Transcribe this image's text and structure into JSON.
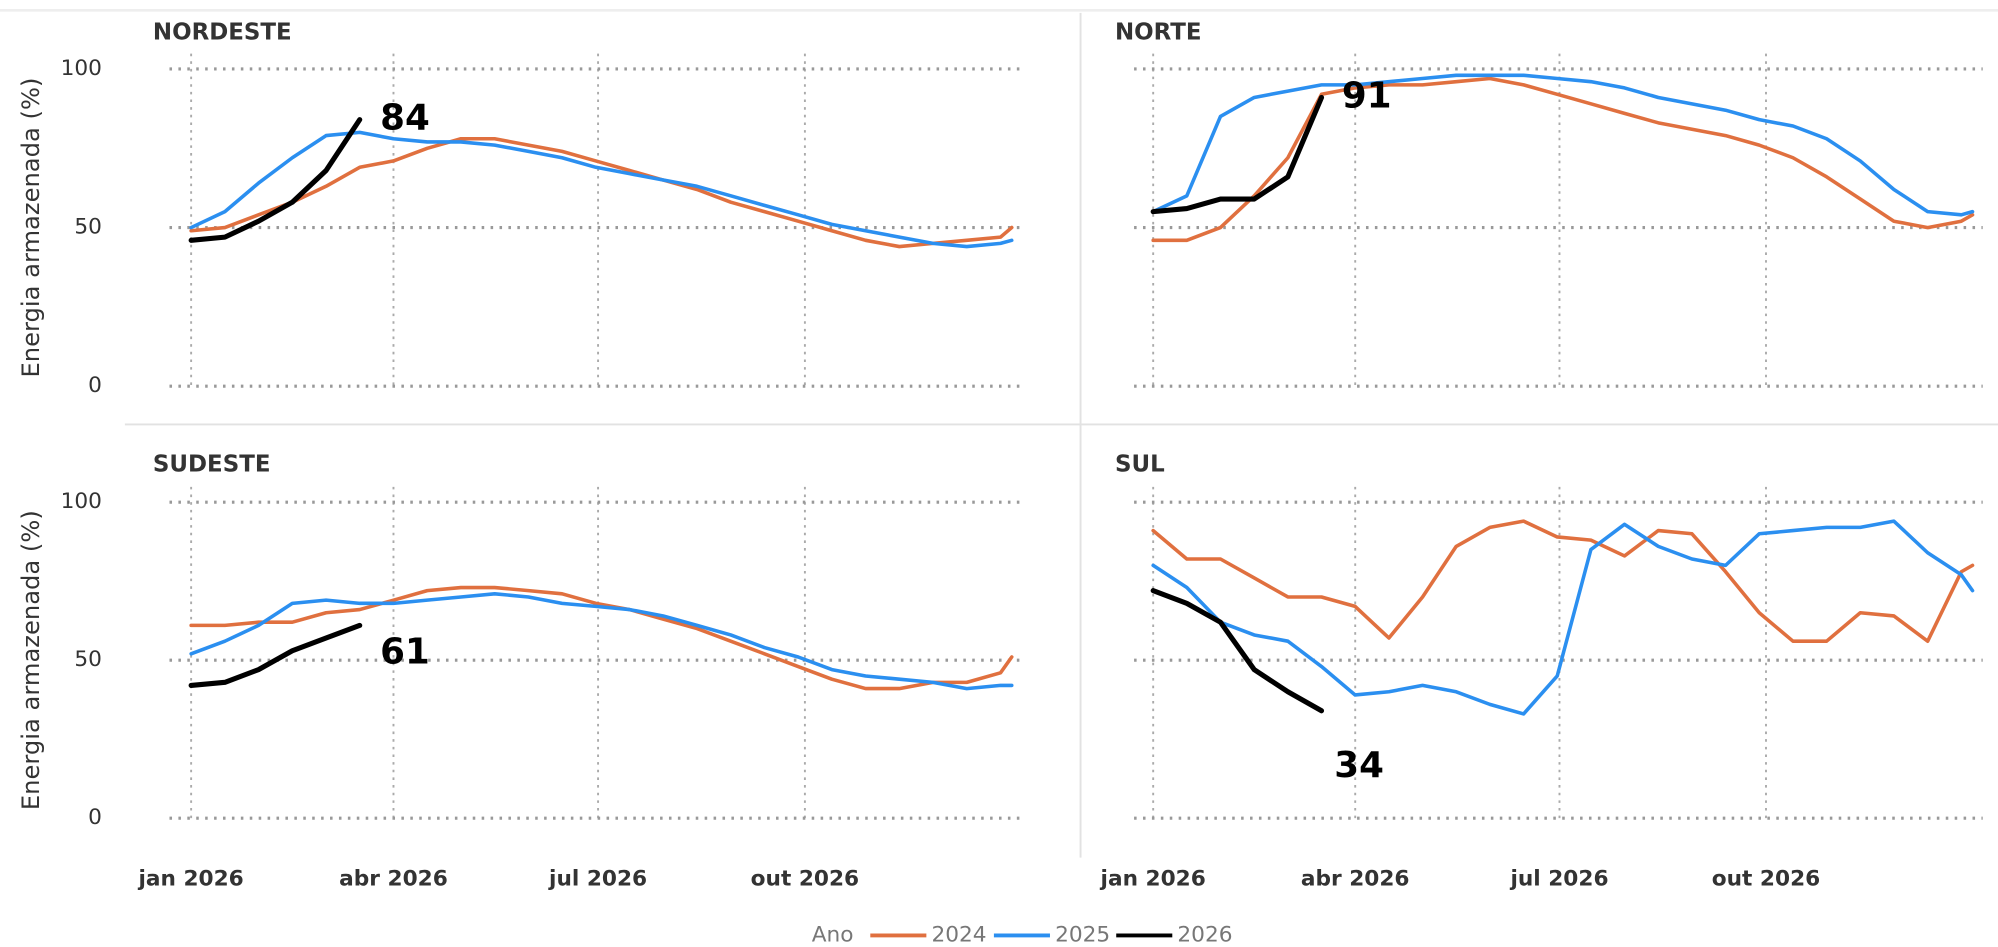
{
  "chart_data": [
    {
      "type": "line",
      "title": "NORDESTE",
      "ylabel": "Energia armazenada (%)",
      "x": [
        0,
        15,
        30,
        45,
        60,
        75,
        90,
        105,
        120,
        135,
        150,
        165,
        180,
        195,
        210,
        225,
        240,
        255,
        270,
        285,
        300,
        315,
        330,
        345,
        360,
        365
      ],
      "xlim": [
        0,
        365
      ],
      "xticks": [
        0,
        90,
        181,
        273
      ],
      "ylim": [
        0,
        100
      ],
      "yticks": [
        0,
        50,
        100
      ],
      "grid": true,
      "series": [
        {
          "name": "2024",
          "color": "#e0703f",
          "values": [
            49,
            50,
            54,
            58,
            63,
            69,
            71,
            75,
            78,
            78,
            76,
            74,
            71,
            68,
            65,
            62,
            58,
            55,
            52,
            49,
            46,
            44,
            45,
            46,
            47,
            50
          ]
        },
        {
          "name": "2025",
          "color": "#2b8ff0",
          "values": [
            50,
            55,
            64,
            72,
            79,
            80,
            78,
            77,
            77,
            76,
            74,
            72,
            69,
            67,
            65,
            63,
            60,
            57,
            54,
            51,
            49,
            47,
            45,
            44,
            45,
            46
          ]
        },
        {
          "name": "2026",
          "color": "#000000",
          "values": [
            46,
            47,
            52,
            58,
            68,
            84,
            null,
            null,
            null,
            null,
            null,
            null,
            null,
            null,
            null,
            null,
            null,
            null,
            null,
            null,
            null,
            null,
            null,
            null,
            null,
            null
          ]
        }
      ]
    },
    {
      "type": "line",
      "title": "NORTE",
      "x": [
        0,
        15,
        30,
        45,
        60,
        75,
        90,
        105,
        120,
        135,
        150,
        165,
        180,
        195,
        210,
        225,
        240,
        255,
        270,
        285,
        300,
        315,
        330,
        345,
        360,
        365
      ],
      "xlim": [
        0,
        365
      ],
      "xticks": [
        0,
        90,
        181,
        273
      ],
      "ylim": [
        0,
        100
      ],
      "yticks": [
        0,
        50,
        100
      ],
      "grid": true,
      "series": [
        {
          "name": "2024",
          "color": "#e0703f",
          "values": [
            46,
            46,
            50,
            60,
            72,
            92,
            94,
            95,
            95,
            96,
            97,
            95,
            92,
            89,
            86,
            83,
            81,
            79,
            76,
            72,
            66,
            59,
            52,
            50,
            52,
            54
          ]
        },
        {
          "name": "2025",
          "color": "#2b8ff0",
          "values": [
            55,
            60,
            85,
            91,
            93,
            95,
            95,
            96,
            97,
            98,
            98,
            98,
            97,
            96,
            94,
            91,
            89,
            87,
            84,
            82,
            78,
            71,
            62,
            55,
            54,
            55
          ]
        },
        {
          "name": "2026",
          "color": "#000000",
          "values": [
            55,
            56,
            59,
            59,
            66,
            91,
            null,
            null,
            null,
            null,
            null,
            null,
            null,
            null,
            null,
            null,
            null,
            null,
            null,
            null,
            null,
            null,
            null,
            null,
            null,
            null
          ]
        }
      ]
    },
    {
      "type": "line",
      "title": "SUDESTE",
      "ylabel": "Energia armazenada (%)",
      "x": [
        0,
        15,
        30,
        45,
        60,
        75,
        90,
        105,
        120,
        135,
        150,
        165,
        180,
        195,
        210,
        225,
        240,
        255,
        270,
        285,
        300,
        315,
        330,
        345,
        360,
        365
      ],
      "xlim": [
        0,
        365
      ],
      "xticks": [
        {
          "value": 0,
          "label": "jan 2026"
        },
        {
          "value": 90,
          "label": "abr 2026"
        },
        {
          "value": 181,
          "label": "jul 2026"
        },
        {
          "value": 273,
          "label": "out 2026"
        }
      ],
      "ylim": [
        0,
        100
      ],
      "yticks": [
        0,
        50,
        100
      ],
      "grid": true,
      "series": [
        {
          "name": "2024",
          "color": "#e0703f",
          "values": [
            61,
            61,
            62,
            62,
            65,
            66,
            69,
            72,
            73,
            73,
            72,
            71,
            68,
            66,
            63,
            60,
            56,
            52,
            48,
            44,
            41,
            41,
            43,
            43,
            46,
            51
          ]
        },
        {
          "name": "2025",
          "color": "#2b8ff0",
          "values": [
            52,
            56,
            61,
            68,
            69,
            68,
            68,
            69,
            70,
            71,
            70,
            68,
            67,
            66,
            64,
            61,
            58,
            54,
            51,
            47,
            45,
            44,
            43,
            41,
            42,
            42
          ]
        },
        {
          "name": "2026",
          "color": "#000000",
          "values": [
            42,
            43,
            47,
            53,
            57,
            61,
            null,
            null,
            null,
            null,
            null,
            null,
            null,
            null,
            null,
            null,
            null,
            null,
            null,
            null,
            null,
            null,
            null,
            null,
            null,
            null
          ]
        }
      ]
    },
    {
      "type": "line",
      "title": "SUL",
      "x": [
        0,
        15,
        30,
        45,
        60,
        75,
        90,
        105,
        120,
        135,
        150,
        165,
        180,
        195,
        210,
        225,
        240,
        255,
        270,
        285,
        300,
        315,
        330,
        345,
        360,
        365
      ],
      "xlim": [
        0,
        365
      ],
      "xticks": [
        {
          "value": 0,
          "label": "jan 2026"
        },
        {
          "value": 90,
          "label": "abr 2026"
        },
        {
          "value": 181,
          "label": "jul 2026"
        },
        {
          "value": 273,
          "label": "out 2026"
        }
      ],
      "ylim": [
        0,
        100
      ],
      "yticks": [
        0,
        50,
        100
      ],
      "grid": true,
      "series": [
        {
          "name": "2024",
          "color": "#e0703f",
          "values": [
            91,
            82,
            82,
            76,
            70,
            70,
            67,
            57,
            70,
            86,
            92,
            94,
            89,
            88,
            83,
            91,
            90,
            78,
            65,
            56,
            56,
            65,
            64,
            56,
            78,
            80
          ]
        },
        {
          "name": "2025",
          "color": "#2b8ff0",
          "values": [
            80,
            73,
            62,
            58,
            56,
            48,
            39,
            40,
            42,
            40,
            36,
            33,
            45,
            85,
            93,
            86,
            82,
            80,
            90,
            91,
            92,
            92,
            94,
            84,
            77,
            72
          ]
        },
        {
          "name": "2026",
          "color": "#000000",
          "values": [
            72,
            68,
            62,
            47,
            40,
            34,
            null,
            null,
            null,
            null,
            null,
            null,
            null,
            null,
            null,
            null,
            null,
            null,
            null,
            null,
            null,
            null,
            null,
            null,
            null,
            null
          ]
        }
      ]
    }
  ],
  "legend": {
    "title": "Ano"
  }
}
